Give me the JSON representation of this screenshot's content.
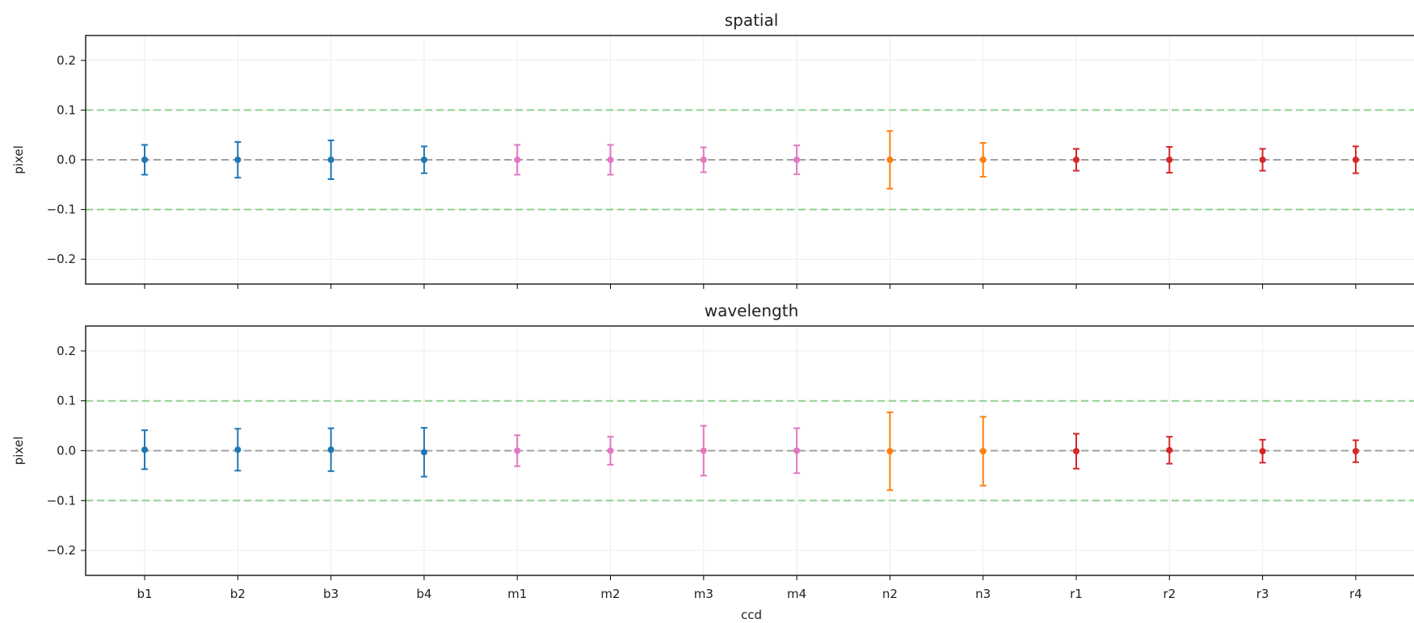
{
  "chart_data": [
    {
      "type": "scatter",
      "title": "spatial",
      "xlabel": "",
      "ylabel": "pixel",
      "ylim": [
        -0.25,
        0.25
      ],
      "yticks": [
        0.2,
        0.1,
        0.0,
        -0.1,
        -0.2
      ],
      "ytick_labels": [
        "0.2",
        "0.1",
        "0.0",
        "−0.1",
        "−0.2"
      ],
      "grid": true,
      "reference_lines": [
        {
          "y": 0.1,
          "color": "#8fd18f",
          "style": "dashed"
        },
        {
          "y": 0.0,
          "color": "#a0a0a0",
          "style": "dashed"
        },
        {
          "y": -0.1,
          "color": "#8fd18f",
          "style": "dashed"
        }
      ],
      "categories": [
        "b1",
        "b2",
        "b3",
        "b4",
        "m1",
        "m2",
        "m3",
        "m4",
        "n2",
        "n3",
        "r1",
        "r2",
        "r3",
        "r4"
      ],
      "values": [
        0.0,
        0.0,
        0.0,
        0.0,
        0.0,
        0.0,
        0.0,
        0.0,
        0.0,
        0.0,
        0.0,
        0.0,
        0.0,
        0.0
      ],
      "errors": [
        0.03,
        0.036,
        0.039,
        0.027,
        0.03,
        0.03,
        0.025,
        0.029,
        0.058,
        0.034,
        0.022,
        0.026,
        0.022,
        0.027
      ],
      "colors": [
        "#1f77b4",
        "#1f77b4",
        "#1f77b4",
        "#1f77b4",
        "#e377c2",
        "#e377c2",
        "#e377c2",
        "#e377c2",
        "#ff7f0e",
        "#ff7f0e",
        "#d62728",
        "#d62728",
        "#d62728",
        "#d62728"
      ]
    },
    {
      "type": "scatter",
      "title": "wavelength",
      "xlabel": "ccd",
      "ylabel": "pixel",
      "ylim": [
        -0.25,
        0.25
      ],
      "yticks": [
        0.2,
        0.1,
        0.0,
        -0.1,
        -0.2
      ],
      "ytick_labels": [
        "0.2",
        "0.1",
        "0.0",
        "−0.1",
        "−0.2"
      ],
      "grid": true,
      "reference_lines": [
        {
          "y": 0.1,
          "color": "#8fd18f",
          "style": "dashed"
        },
        {
          "y": 0.0,
          "color": "#a0a0a0",
          "style": "dashed"
        },
        {
          "y": -0.1,
          "color": "#8fd18f",
          "style": "dashed"
        }
      ],
      "categories": [
        "b1",
        "b2",
        "b3",
        "b4",
        "m1",
        "m2",
        "m3",
        "m4",
        "n2",
        "n3",
        "r1",
        "r2",
        "r3",
        "r4"
      ],
      "values": [
        0.002,
        0.002,
        0.002,
        -0.003,
        0.0,
        0.0,
        0.0,
        0.0,
        -0.001,
        -0.001,
        -0.001,
        0.001,
        -0.001,
        -0.001
      ],
      "errors": [
        0.039,
        0.042,
        0.043,
        0.049,
        0.031,
        0.028,
        0.05,
        0.045,
        0.078,
        0.069,
        0.035,
        0.027,
        0.023,
        0.022
      ],
      "colors": [
        "#1f77b4",
        "#1f77b4",
        "#1f77b4",
        "#1f77b4",
        "#e377c2",
        "#e377c2",
        "#e377c2",
        "#e377c2",
        "#ff7f0e",
        "#ff7f0e",
        "#d62728",
        "#d62728",
        "#d62728",
        "#d62728"
      ]
    }
  ]
}
